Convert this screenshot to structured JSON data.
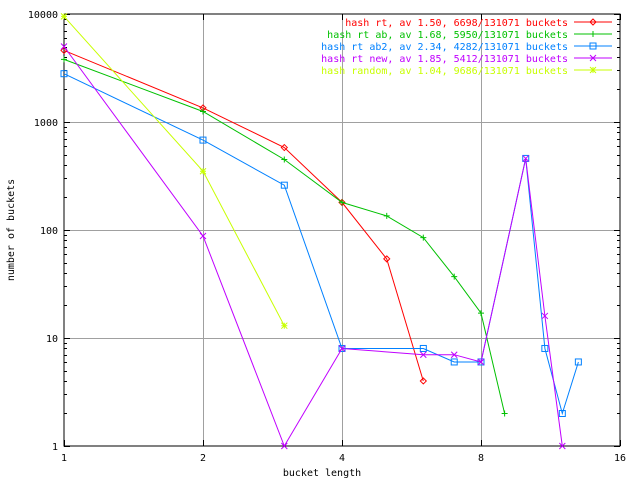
{
  "chart_data": {
    "type": "line",
    "title": "",
    "xlabel": "bucket length",
    "ylabel": "number of buckets",
    "x_scale": "log2",
    "y_scale": "log10",
    "xlim": [
      1,
      16
    ],
    "ylim": [
      1,
      10000
    ],
    "x_ticks": [
      1,
      2,
      4,
      8,
      16
    ],
    "x_tick_labels": [
      "1",
      "2",
      "4",
      "8",
      "16"
    ],
    "y_ticks": [
      1,
      10,
      100,
      1000,
      10000
    ],
    "y_tick_labels": [
      "1",
      "10",
      "100",
      "1000",
      "10000"
    ],
    "grid": true,
    "legend_position": "top-right",
    "series": [
      {
        "name": "hash rt, av 1.50, 6698/131071 buckets",
        "color": "#ff0000",
        "marker": "diamond",
        "points": [
          [
            1,
            4600
          ],
          [
            2,
            1350
          ],
          [
            3,
            580
          ],
          [
            4,
            180
          ],
          [
            5,
            54
          ],
          [
            6,
            4
          ]
        ]
      },
      {
        "name": "hash rt ab, av 1.68, 5950/131071 buckets",
        "color": "#00c000",
        "marker": "plus",
        "points": [
          [
            1,
            3800
          ],
          [
            2,
            1250
          ],
          [
            3,
            450
          ],
          [
            4,
            180
          ],
          [
            5,
            135
          ],
          [
            6,
            85
          ],
          [
            7,
            37
          ],
          [
            8,
            17
          ],
          [
            9,
            2
          ]
        ]
      },
      {
        "name": "hash rt ab2, av 2.34, 4282/131071 buckets",
        "color": "#0080ff",
        "marker": "square",
        "points": [
          [
            1,
            2800
          ],
          [
            2,
            680
          ],
          [
            3,
            260
          ],
          [
            4,
            8
          ],
          [
            6,
            8
          ],
          [
            7,
            6
          ],
          [
            8,
            6
          ],
          [
            10,
            460
          ],
          [
            11,
            8
          ],
          [
            12,
            2
          ],
          [
            13,
            6
          ]
        ]
      },
      {
        "name": "hash rt new, av 1.85, 5412/131071 buckets",
        "color": "#c000ff",
        "marker": "x",
        "points": [
          [
            1,
            5000
          ],
          [
            2,
            88
          ],
          [
            3,
            1
          ],
          [
            4,
            8
          ],
          [
            6,
            7
          ],
          [
            7,
            7
          ],
          [
            8,
            6
          ],
          [
            10,
            460
          ],
          [
            11,
            16
          ],
          [
            12,
            1
          ]
        ]
      },
      {
        "name": "hash random, av 1.04, 9686/131071 buckets",
        "color": "#c8ff00",
        "marker": "star",
        "points": [
          [
            1,
            9500
          ],
          [
            2,
            350
          ],
          [
            3,
            13
          ]
        ]
      }
    ]
  }
}
